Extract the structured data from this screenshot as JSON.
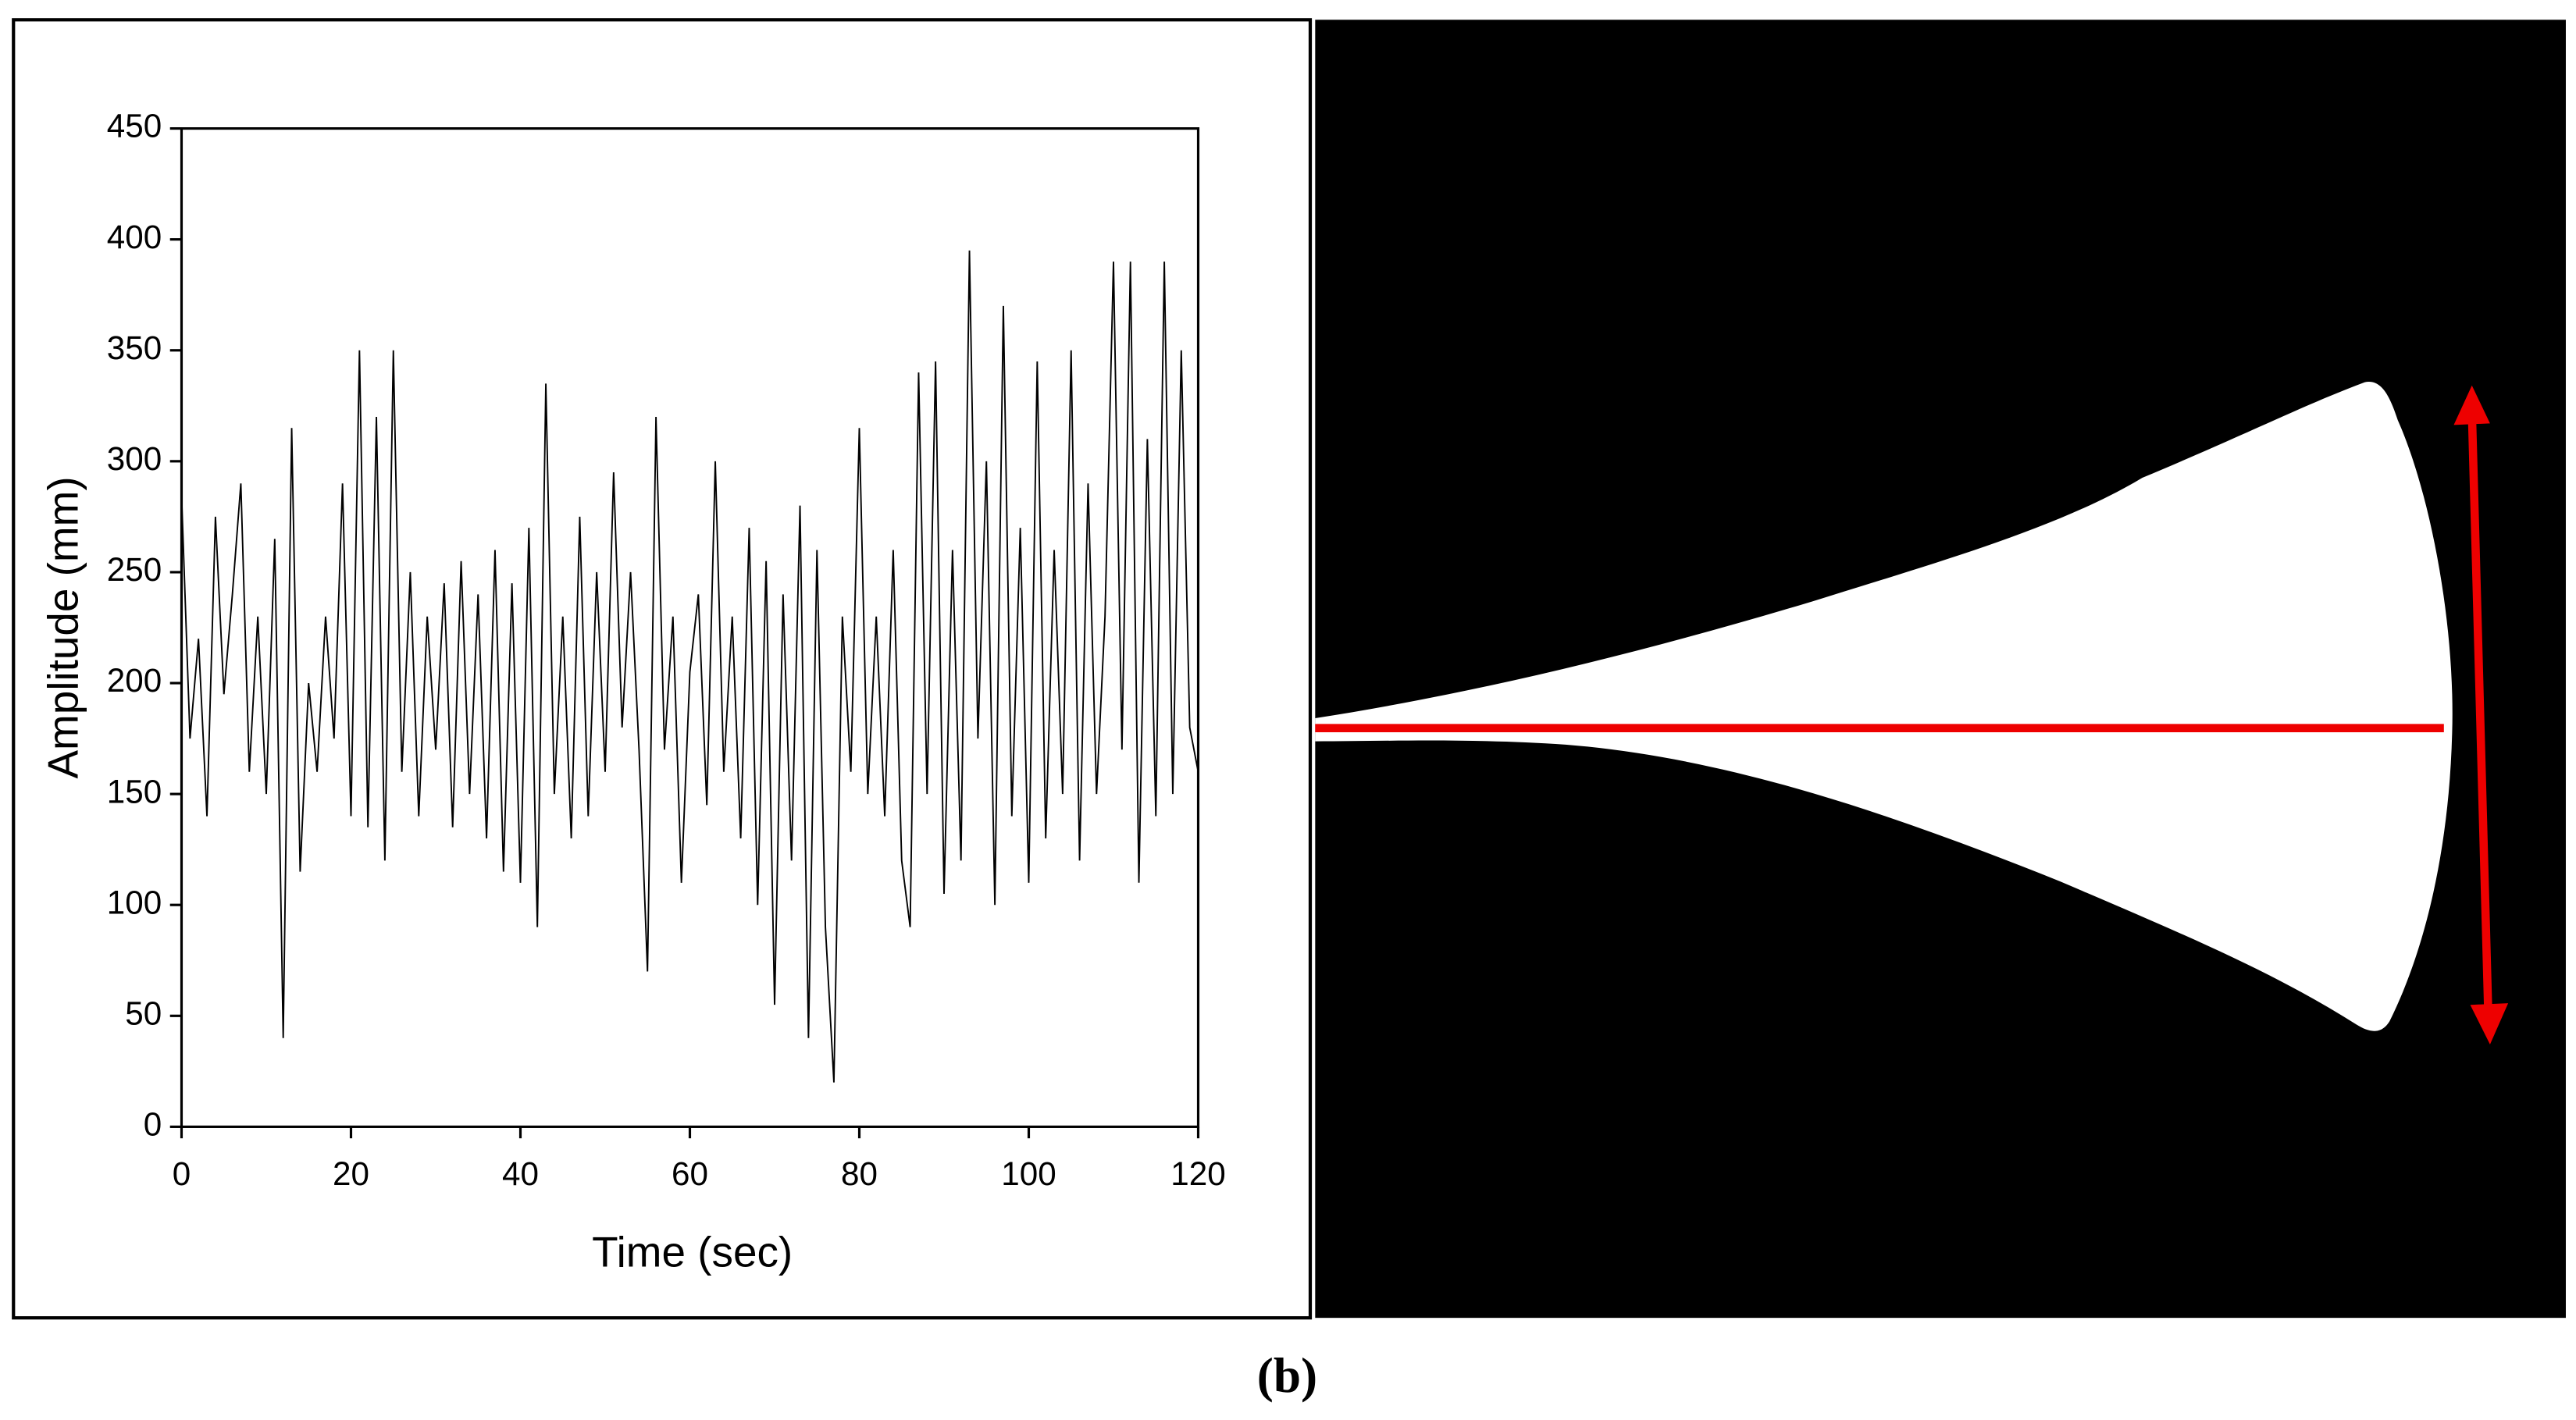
{
  "chart_data": {
    "type": "line",
    "xlabel": "Time (sec)",
    "ylabel": "Amplitude (mm)",
    "caption": "(b)",
    "x": [
      0,
      1,
      2,
      3,
      4,
      5,
      6,
      7,
      8,
      9,
      10,
      11,
      12,
      13,
      14,
      15,
      16,
      17,
      18,
      19,
      20,
      21,
      22,
      23,
      24,
      25,
      26,
      27,
      28,
      29,
      30,
      31,
      32,
      33,
      34,
      35,
      36,
      37,
      38,
      39,
      40,
      41,
      42,
      43,
      44,
      45,
      46,
      47,
      48,
      49,
      50,
      51,
      52,
      53,
      54,
      55,
      56,
      57,
      58,
      59,
      60,
      61,
      62,
      63,
      64,
      65,
      66,
      67,
      68,
      69,
      70,
      71,
      72,
      73,
      74,
      75,
      76,
      77,
      78,
      79,
      80,
      81,
      82,
      83,
      84,
      85,
      86,
      87,
      88,
      89,
      90,
      91,
      92,
      93,
      94,
      95,
      96,
      97,
      98,
      99,
      100,
      101,
      102,
      103,
      104,
      105,
      106,
      107,
      108,
      109,
      110,
      111,
      112,
      113,
      114,
      115,
      116,
      117,
      118,
      119,
      120
    ],
    "series": [
      {
        "name": "Amplitude",
        "color": "#000000",
        "values": [
          285,
          175,
          220,
          140,
          275,
          195,
          240,
          290,
          160,
          230,
          150,
          265,
          40,
          315,
          115,
          200,
          160,
          230,
          175,
          290,
          140,
          350,
          135,
          320,
          120,
          350,
          160,
          250,
          140,
          230,
          170,
          245,
          135,
          255,
          150,
          240,
          130,
          260,
          115,
          245,
          110,
          270,
          90,
          335,
          150,
          230,
          130,
          275,
          140,
          250,
          160,
          295,
          180,
          250,
          170,
          70,
          320,
          170,
          230,
          110,
          205,
          240,
          145,
          300,
          160,
          230,
          130,
          270,
          100,
          255,
          55,
          240,
          120,
          280,
          40,
          260,
          90,
          20,
          230,
          160,
          315,
          150,
          230,
          140,
          260,
          120,
          90,
          340,
          150,
          345,
          105,
          260,
          120,
          395,
          175,
          300,
          100,
          370,
          140,
          270,
          110,
          345,
          130,
          260,
          150,
          350,
          120,
          290,
          150,
          230,
          390,
          170,
          390,
          110,
          310,
          140,
          390,
          150,
          350,
          180,
          160
        ]
      }
    ],
    "xlim": [
      0,
      120
    ],
    "xticks": [
      0,
      20,
      40,
      60,
      80,
      100,
      120
    ],
    "ylim": [
      0,
      450
    ],
    "yticks": [
      0,
      50,
      100,
      150,
      200,
      250,
      300,
      350,
      400,
      450
    ]
  }
}
